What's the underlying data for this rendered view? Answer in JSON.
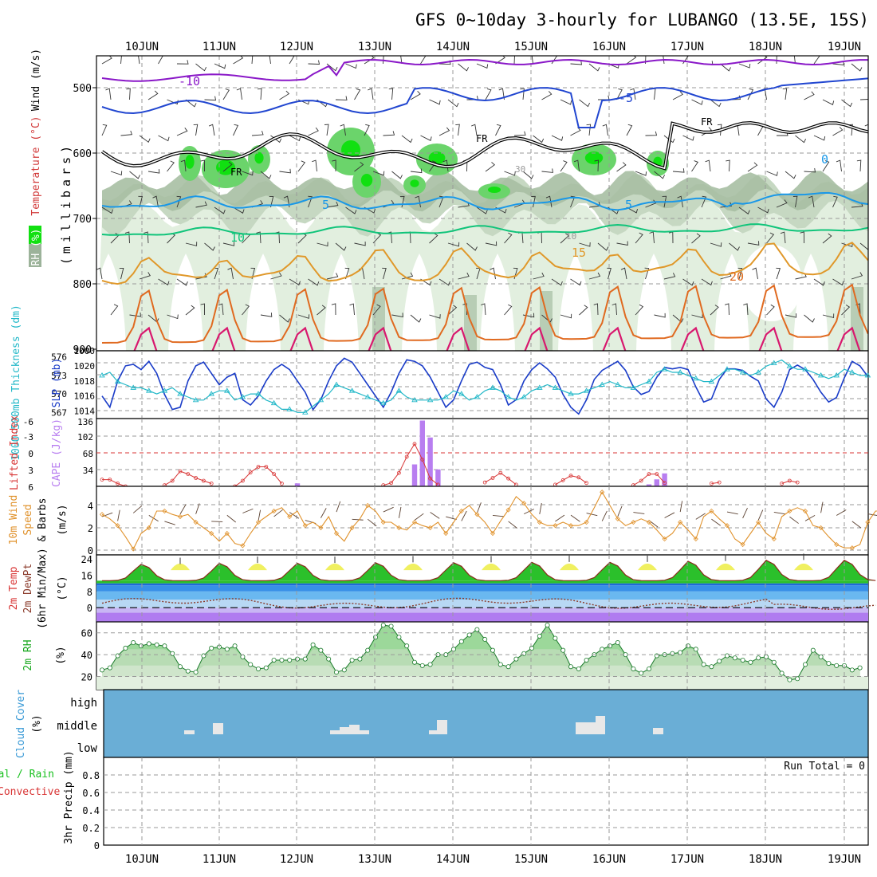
{
  "title": "GFS 0~10day 3-hourly for LUBANGO (13.5E, 15S)",
  "colors": {
    "frame": "#000000",
    "grid": "#9a9a9a",
    "rh_light": "#e2efdf",
    "rh_mid": "#c6d8c2",
    "rh_dark": "#a7bfa3",
    "rh_green": "#6bd46b",
    "rh_bright": "#11e011",
    "temp_purple": "#8a18c8",
    "temp_blue": "#2146d0",
    "temp_lightblue": "#1a98e8",
    "temp_teal": "#10c47a",
    "temp_orange": "#e0982a",
    "temp_darkorange": "#e06a20",
    "temp_magenta": "#d8186e",
    "slp": "#1a3cc8",
    "thickness": "#22b8c8",
    "lifted": "#d83434",
    "cape": "#b87ef0",
    "wind": "#e0922c",
    "cloud_bg": "#6aaed6",
    "cloud_patch": "#e8e8e8"
  },
  "x_axis": {
    "day_labels": [
      "10JUN",
      "11JUN",
      "12JUN",
      "13JUN",
      "14JUN",
      "15JUN",
      "16JUN",
      "17JUN",
      "18JUN",
      "19JUN"
    ]
  },
  "panels": {
    "upper_air": {
      "ylabel_rh": "RH (%)",
      "ylabel_temp": "Temperature (°C)",
      "ylabel_wind": "Wind (m/s)",
      "ylabel_units": "(millibars)",
      "y_ticks": [
        "500",
        "600",
        "700",
        "800",
        "900"
      ],
      "contour_labels": {
        "t_minus10": "-10",
        "t_minus5": "-5",
        "t_fr1": "FR",
        "t_fr2": "FR",
        "t_fr3": "FR",
        "t_0": "0",
        "t_5a": "5",
        "t_5b": "5",
        "t_10a": "10",
        "t_10b": "10",
        "t_15": "15",
        "t_20": "20",
        "rh_30": "30",
        "rh_10": "10"
      }
    },
    "slp": {
      "ylabel_thick": "1000-500mb Thickness (dm)",
      "ylabel_slp": "SLP (mb)",
      "thick_ticks": [
        "576",
        "573",
        "570",
        "567"
      ],
      "slp_ticks": [
        "1020",
        "1018",
        "1016",
        "1014"
      ]
    },
    "cape": {
      "ylabel_li": "Lifted Index",
      "ylabel_cape": "CAPE (J/kg)",
      "li_ticks": [
        "-6",
        "-3",
        "0",
        "3",
        "6"
      ],
      "cape_ticks": [
        "136",
        "102",
        "68",
        "34"
      ]
    },
    "wind10m": {
      "ylabel_1": "10m Wind",
      "ylabel_2": "Speed",
      "ylabel_3": "& Barbs",
      "ylabel_units": "(m/s)",
      "y_ticks": [
        "4",
        "2",
        "0"
      ]
    },
    "temp2m": {
      "ylabel_1": "2m Temp",
      "ylabel_2": "2m DewPt",
      "ylabel_3": "(6hr Min/Max)",
      "ylabel_units": "(°C)",
      "y_ticks": [
        "24",
        "16",
        "8",
        "0"
      ]
    },
    "rh2m": {
      "ylabel": "2m RH",
      "ylabel_units": "(%)",
      "y_ticks": [
        "60",
        "40",
        "20"
      ]
    },
    "cloud": {
      "ylabel": "Cloud Cover",
      "ylabel_units": "(%)",
      "levels": [
        "high",
        "middle",
        "low"
      ]
    },
    "precip": {
      "ylabel_total": "Total / Rain",
      "ylabel_conv": "Convective",
      "ylabel_units": "3hr Precip (mm)",
      "y_ticks": [
        "0.8",
        "0.6",
        "0.4",
        "0.2",
        "0"
      ],
      "run_total": "Run Total = 0"
    }
  },
  "chart_data": [
    {
      "type": "line",
      "name": "SLP (mb)",
      "ylim": [
        1013,
        1022
      ],
      "values": [
        1016,
        1014.5,
        1018,
        1020,
        1020.2,
        1019.5,
        1020.6,
        1019,
        1016.2,
        1014.2,
        1014.5,
        1018,
        1020,
        1020.5,
        1019,
        1017.5,
        1018.5,
        1019,
        1015.5,
        1014.8,
        1016,
        1018,
        1019.5,
        1020.2,
        1019.5,
        1018,
        1016.5,
        1014.2,
        1015.5,
        1018,
        1020,
        1021,
        1020.5,
        1019,
        1017.5,
        1016,
        1014.5,
        1016.5,
        1019,
        1020.8,
        1020.6,
        1020,
        1018.5,
        1016.5,
        1014.5,
        1015.5,
        1018,
        1020.2,
        1020.5,
        1019.8,
        1019.5,
        1017.5,
        1014.8,
        1015.5,
        1018,
        1019.5,
        1020.4,
        1019.6,
        1018.5,
        1016.2,
        1014.5,
        1013.6,
        1015.5,
        1018.2,
        1019.4,
        1020,
        1020.6,
        1019.4,
        1017.2,
        1016.2,
        1016.6,
        1018.5,
        1019.8,
        1019.6,
        1019.8,
        1019.5,
        1017.2,
        1015.2,
        1015.6,
        1018.2,
        1019.6,
        1019.6,
        1019.4,
        1018.6,
        1018,
        1015.6,
        1014.5,
        1016.5,
        1019.5,
        1020.1,
        1019.5,
        1018.2,
        1016.5,
        1015.2,
        1015.8,
        1018.4,
        1020.6,
        1020,
        1018.6
      ]
    },
    {
      "type": "line",
      "name": "1000-500mb Thickness (dm)",
      "ylim": [
        566,
        577
      ],
      "values": [
        573,
        573.5,
        572,
        571.5,
        571,
        571,
        570.5,
        570,
        570.5,
        571,
        570,
        569.5,
        569,
        569,
        570,
        570.5,
        570.5,
        569,
        569.5,
        570,
        570,
        569,
        568.5,
        567.5,
        567.5,
        567,
        567,
        568,
        569,
        570,
        571.5,
        571,
        570.5,
        570,
        569.5,
        569,
        568.5,
        569,
        570.5,
        569.5,
        569,
        569,
        569,
        569,
        569.5,
        570.5,
        570,
        569,
        569.5,
        570.5,
        571,
        570.5,
        569.5,
        569,
        569.5,
        570.5,
        571,
        571.5,
        571,
        570.5,
        570,
        570,
        570.5,
        571,
        571.5,
        572,
        571.5,
        571,
        571,
        571.5,
        572,
        573.5,
        574,
        573.5,
        573.5,
        573,
        572.5,
        572,
        572,
        573,
        574,
        574,
        573.5,
        573,
        573.5,
        574.5,
        575,
        575.5,
        574.5,
        574,
        574,
        573.5,
        573,
        572.5,
        573,
        574,
        573.5,
        573,
        573
      ]
    },
    {
      "type": "bar",
      "name": "CAPE (J/kg)",
      "ylim": [
        0,
        136
      ],
      "x_index": [
        25,
        39,
        40,
        41,
        42,
        43,
        70,
        71,
        72
      ],
      "values": [
        6,
        0,
        44,
        132,
        98,
        34,
        4,
        14,
        26
      ]
    },
    {
      "type": "line",
      "name": "Lifted Index",
      "ylim": [
        -6,
        6
      ],
      "segments": [
        {
          "start": 0,
          "values": [
            4.8,
            4.8,
            5.5,
            6
          ]
        },
        {
          "start": 8,
          "values": [
            5.8,
            5,
            3.3,
            3.8,
            4.5,
            5,
            5.5
          ]
        },
        {
          "start": 17,
          "values": [
            6,
            5,
            3.5,
            2.5,
            2.5,
            3.8,
            5.5
          ]
        },
        {
          "start": 36,
          "values": [
            5.8,
            5.4,
            3.6,
            0.7,
            -1.6,
            1.2,
            4.6,
            5.7
          ]
        },
        {
          "start": 49,
          "values": [
            5.3,
            4.5,
            3.6,
            4.6,
            5.7
          ]
        },
        {
          "start": 58,
          "values": [
            5.7,
            4.9,
            4.1,
            4.4,
            5.4
          ]
        },
        {
          "start": 68,
          "values": [
            5.8,
            5,
            3.8,
            3.8,
            5.4
          ]
        },
        {
          "start": 78,
          "values": [
            5.5,
            5.3
          ]
        },
        {
          "start": 87,
          "values": [
            5.5,
            5,
            5.3
          ]
        }
      ]
    },
    {
      "type": "line",
      "name": "10m Wind Speed (m/s)",
      "ylim": [
        -0.3,
        5
      ],
      "values": [
        3.2,
        2.8,
        2.2,
        1.2,
        0.1,
        1.5,
        2,
        3.5,
        3.5,
        3.2,
        3,
        3.2,
        2.5,
        2,
        1.5,
        0.8,
        1.5,
        0.6,
        0.4,
        1.5,
        2.5,
        3,
        3.5,
        3.8,
        3,
        3.5,
        2.2,
        2.5,
        2,
        3,
        1.5,
        0.8,
        2,
        2.8,
        4,
        3.5,
        2.5,
        2.5,
        2,
        1.8,
        2.5,
        2.2,
        2,
        2.5,
        1.5,
        2.5,
        3.5,
        4,
        3.2,
        2.5,
        1.5,
        2.6,
        3.6,
        4.8,
        4.2,
        3.2,
        2.5,
        2.2,
        2.2,
        2.5,
        2.2,
        2.2,
        2.5,
        3.8,
        5.2,
        4,
        2.8,
        2.2,
        2.5,
        2.8,
        2.5,
        1.8,
        1,
        1.5,
        2.5,
        1.8,
        1,
        3,
        3.5,
        2.8,
        2.2,
        1,
        0.5,
        1.5,
        2.5,
        1.5,
        1,
        3,
        3.5,
        3.8,
        3.5,
        2.2,
        2,
        1.2,
        0.5,
        0.2,
        0.2,
        0.5,
        2.5,
        3.5,
        3.5,
        4.2,
        3.2,
        2.8,
        2.5,
        2.5,
        2,
        2.5,
        2,
        1.2
      ]
    },
    {
      "type": "area",
      "name": "2m Temp (°C)",
      "ylim": [
        -7,
        26
      ],
      "max_by_day": [
        21.5,
        22,
        22,
        22.3,
        22.3,
        22.5,
        22.5,
        23,
        23.5
      ],
      "min_level": 13.3
    },
    {
      "type": "area",
      "name": "2m RH (%)",
      "ylim": [
        8,
        70
      ],
      "values": [
        26,
        28,
        39,
        46,
        51,
        48,
        50,
        49,
        48,
        41,
        29,
        25,
        24,
        39,
        46,
        47,
        45,
        48,
        38,
        31,
        27,
        28,
        35,
        35,
        35,
        36,
        36,
        49,
        44,
        36,
        24,
        26,
        35,
        36,
        44,
        56,
        67,
        66,
        56,
        48,
        33,
        30,
        31,
        40,
        40,
        45,
        52,
        58,
        63,
        54,
        44,
        31,
        29,
        36,
        41,
        46,
        57,
        67,
        55,
        44,
        29,
        27,
        35,
        40,
        45,
        48,
        51,
        40,
        27,
        23,
        27,
        39,
        40,
        41,
        42,
        48,
        45,
        31,
        29,
        34,
        39,
        37,
        35,
        33,
        37,
        38,
        33,
        23,
        17,
        18,
        31,
        44,
        38,
        32,
        30,
        30,
        26,
        28
      ]
    },
    {
      "type": "bar",
      "name": "Cloud Cover (%)",
      "ylim": [
        0,
        100
      ]
    },
    {
      "type": "bar",
      "name": "3hr Precip (mm)",
      "ylim": [
        0,
        0.9
      ],
      "values": []
    }
  ]
}
